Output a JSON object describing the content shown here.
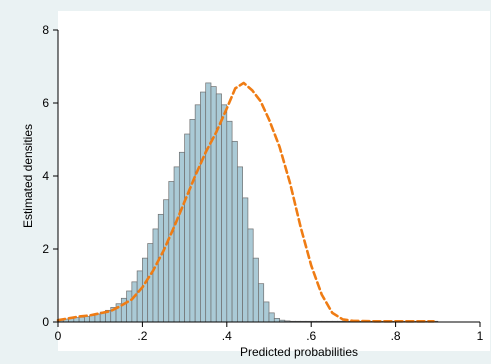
{
  "chart_data": {
    "type": "histogram",
    "xlabel": "Predicted probabilities",
    "ylabel": "Estimated densities",
    "xlim": [
      0,
      1
    ],
    "ylim": [
      0,
      8
    ],
    "x_ticks": [
      {
        "value": 0,
        "label": "0"
      },
      {
        "value": 0.2,
        "label": ".2"
      },
      {
        "value": 0.4,
        "label": ".4"
      },
      {
        "value": 0.6,
        "label": ".6"
      },
      {
        "value": 0.8,
        "label": ".8"
      },
      {
        "value": 1,
        "label": "1"
      }
    ],
    "y_ticks": [
      {
        "value": 0,
        "label": "0"
      },
      {
        "value": 2,
        "label": "2"
      },
      {
        "value": 4,
        "label": "4"
      },
      {
        "value": 6,
        "label": "6"
      },
      {
        "value": 8,
        "label": "8"
      }
    ],
    "grid": false,
    "histogram": {
      "bin_start": 0.0,
      "bin_width": 0.0125,
      "values": [
        0.05,
        0.08,
        0.1,
        0.12,
        0.13,
        0.15,
        0.18,
        0.22,
        0.27,
        0.32,
        0.4,
        0.5,
        0.65,
        0.85,
        1.1,
        1.4,
        1.75,
        2.15,
        2.55,
        2.95,
        3.35,
        3.85,
        4.25,
        4.65,
        5.15,
        5.55,
        5.95,
        6.3,
        6.55,
        6.45,
        6.25,
        5.95,
        5.5,
        4.95,
        4.25,
        3.4,
        2.55,
        1.75,
        1.05,
        0.55,
        0.25,
        0.1,
        0.05,
        0.03,
        0.02,
        0.02,
        0.02,
        0.02,
        0.02,
        0.02,
        0.02,
        0.02,
        0.02,
        0.02,
        0.02,
        0.02,
        0.02,
        0.02,
        0.02,
        0.02,
        0.02,
        0.02,
        0.02,
        0.02,
        0.02,
        0.02,
        0.02,
        0.02,
        0.02,
        0.02,
        0.02,
        0.02
      ]
    },
    "density": {
      "color": "#ef7c14",
      "x": [
        0.0,
        0.025,
        0.05,
        0.075,
        0.1,
        0.125,
        0.15,
        0.175,
        0.2,
        0.225,
        0.25,
        0.275,
        0.3,
        0.325,
        0.35,
        0.375,
        0.4,
        0.42,
        0.44,
        0.46,
        0.48,
        0.5,
        0.525,
        0.55,
        0.575,
        0.6,
        0.625,
        0.65,
        0.675,
        0.7,
        0.75,
        0.8,
        0.85,
        0.89
      ],
      "y": [
        0.05,
        0.1,
        0.15,
        0.18,
        0.24,
        0.3,
        0.45,
        0.62,
        0.95,
        1.4,
        1.95,
        2.6,
        3.3,
        4.0,
        4.65,
        5.2,
        5.85,
        6.4,
        6.55,
        6.35,
        6.05,
        5.55,
        4.8,
        3.8,
        2.6,
        1.55,
        0.75,
        0.25,
        0.07,
        0.03,
        0.02,
        0.02,
        0.02,
        0.02
      ]
    },
    "bar_color": "#aacad6"
  }
}
